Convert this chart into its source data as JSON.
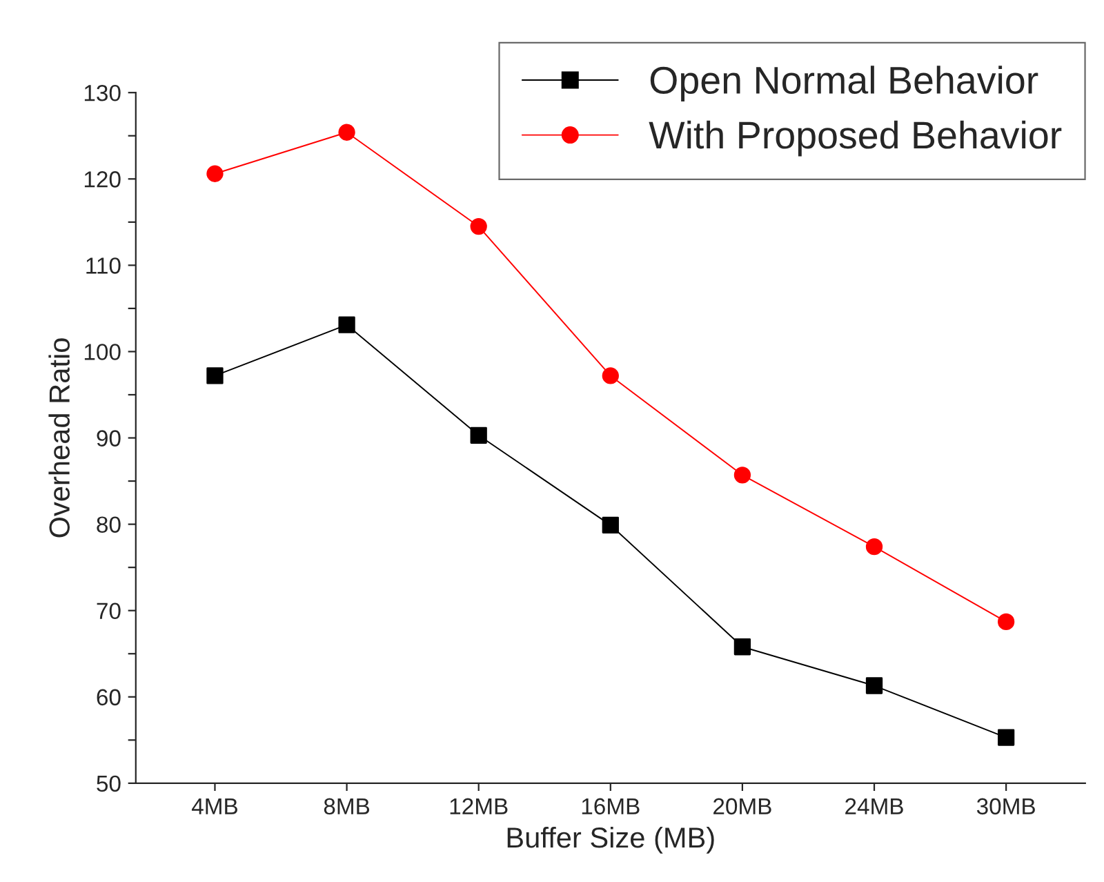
{
  "chart_data": {
    "type": "line",
    "xlabel": "Buffer Size (MB)",
    "ylabel": "Overhead Ratio",
    "categories": [
      "4MB",
      "8MB",
      "12MB",
      "16MB",
      "20MB",
      "24MB",
      "30MB"
    ],
    "series": [
      {
        "name": "Open Normal Behavior",
        "color": "#000000",
        "marker": "square",
        "values": [
          97.2,
          103.1,
          90.3,
          79.9,
          65.8,
          61.3,
          55.3
        ]
      },
      {
        "name": "With Proposed Behavior",
        "color": "#ff0000",
        "marker": "circle",
        "values": [
          120.6,
          125.4,
          114.5,
          97.2,
          85.7,
          77.4,
          68.7
        ]
      }
    ],
    "ylim": [
      50,
      130
    ],
    "yticks": [
      50,
      {
        "value": 55,
        "label": null
      },
      60,
      {
        "value": 65,
        "label": null
      },
      70,
      {
        "value": 75,
        "label": null
      },
      80,
      {
        "value": 85,
        "label": null
      },
      90,
      {
        "value": 95,
        "label": null
      },
      100,
      {
        "value": 105,
        "label": null
      },
      110,
      {
        "value": 115,
        "label": null
      },
      120,
      {
        "value": 125,
        "label": null
      },
      130
    ],
    "grid": false,
    "legend": "top right",
    "line_style": "solid"
  }
}
